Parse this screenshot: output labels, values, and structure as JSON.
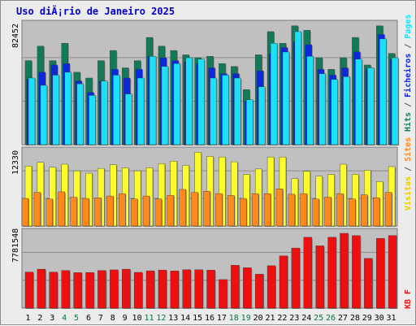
{
  "title": "Uso diÃ¡rio de Janeiro 2025",
  "colors": {
    "hits": "#127a58",
    "files": "#0b28e0",
    "pages": "#1ce0f8",
    "visits": "#fcfc2a",
    "sites": "#ff8a1c",
    "kbytes": "#ee1010",
    "weekend_label": "#007a3e"
  },
  "legend": {
    "top": [
      {
        "text": "Hits",
        "color": "#127a58"
      },
      {
        "text": " / ",
        "color": "#555555"
      },
      {
        "text": "Ficheiros",
        "color": "#0b28e0"
      },
      {
        "text": " / ",
        "color": "#555555"
      },
      {
        "text": "Pages",
        "color": "#1ce0f8"
      }
    ],
    "middle": [
      {
        "text": "Visitas",
        "color": "#e6d000"
      },
      {
        "text": " / ",
        "color": "#555555"
      },
      {
        "text": "Sites",
        "color": "#ff8a1c"
      }
    ],
    "bottom": [
      {
        "text": "KB F",
        "color": "#ee1010"
      }
    ]
  },
  "chart_data": [
    {
      "type": "bar",
      "y_label": "82452",
      "ylim": [
        0,
        82452
      ],
      "categories": [
        "1",
        "2",
        "3",
        "4",
        "5",
        "6",
        "7",
        "8",
        "9",
        "10",
        "11",
        "12",
        "13",
        "14",
        "15",
        "16",
        "17",
        "18",
        "19",
        "20",
        "21",
        "22",
        "23",
        "24",
        "25",
        "26",
        "27",
        "28",
        "29",
        "30",
        "31"
      ],
      "series": [
        {
          "name": "Hits",
          "values": [
            58000,
            68000,
            58000,
            70000,
            50000,
            46000,
            58000,
            65000,
            53000,
            58000,
            74000,
            68000,
            65000,
            62000,
            60000,
            61000,
            56000,
            54000,
            38000,
            62000,
            78000,
            70000,
            82000,
            79000,
            60000,
            52000,
            60000,
            74000,
            55000,
            82000,
            63000
          ]
        },
        {
          "name": "Ficheiros",
          "values": [
            45000,
            50000,
            55000,
            56000,
            44000,
            36000,
            44000,
            52000,
            46000,
            52000,
            61000,
            60000,
            58000,
            57000,
            56000,
            53000,
            49000,
            49000,
            30000,
            51000,
            63000,
            67000,
            71000,
            69000,
            52000,
            48000,
            53000,
            64000,
            52000,
            76000,
            59000
          ]
        },
        {
          "name": "Pages",
          "values": [
            46000,
            41000,
            48000,
            50000,
            42000,
            34000,
            44000,
            48000,
            35000,
            46000,
            61000,
            54000,
            56000,
            60000,
            59000,
            46000,
            48000,
            46000,
            31000,
            40000,
            70000,
            64000,
            78000,
            61000,
            49000,
            45000,
            47000,
            59000,
            53000,
            73000,
            60000
          ]
        }
      ]
    },
    {
      "type": "bar",
      "y_label": "12330",
      "ylim": [
        0,
        12330
      ],
      "categories": [
        "1",
        "2",
        "3",
        "4",
        "5",
        "6",
        "7",
        "8",
        "9",
        "10",
        "11",
        "12",
        "13",
        "14",
        "15",
        "16",
        "17",
        "18",
        "19",
        "20",
        "21",
        "22",
        "23",
        "24",
        "25",
        "26",
        "27",
        "28",
        "29",
        "30",
        "31"
      ],
      "series": [
        {
          "name": "Visitas",
          "values": [
            10000,
            10600,
            9800,
            10300,
            9200,
            8800,
            9600,
            10200,
            9700,
            9200,
            9700,
            10400,
            10800,
            10100,
            12300,
            11600,
            11500,
            10700,
            8600,
            9500,
            11500,
            11500,
            7900,
            9100,
            8300,
            8600,
            10300,
            8600,
            9300,
            7400,
            9900
          ]
        },
        {
          "name": "Sites",
          "values": [
            4600,
            5600,
            4500,
            5700,
            4800,
            4600,
            4700,
            5000,
            5400,
            4500,
            5000,
            4500,
            5100,
            6100,
            5600,
            5800,
            5400,
            5100,
            4600,
            5400,
            5400,
            6200,
            5300,
            5400,
            4500,
            4800,
            5400,
            4500,
            5200,
            4700,
            5600
          ]
        }
      ]
    },
    {
      "type": "bar",
      "y_label": "7781548",
      "ylim": [
        0,
        7781548
      ],
      "categories": [
        "1",
        "2",
        "3",
        "4",
        "5",
        "6",
        "7",
        "8",
        "9",
        "10",
        "11",
        "12",
        "13",
        "14",
        "15",
        "16",
        "17",
        "18",
        "19",
        "20",
        "21",
        "22",
        "23",
        "24",
        "25",
        "26",
        "27",
        "28",
        "29",
        "30",
        "31"
      ],
      "series": [
        {
          "name": "KB F",
          "values": [
            3750000,
            4050000,
            3750000,
            3910000,
            3690000,
            3700000,
            3910000,
            3980000,
            4050000,
            3720000,
            3880000,
            3960000,
            3870000,
            3990000,
            3990000,
            3950000,
            2970000,
            4460000,
            4200000,
            3540000,
            4410000,
            5440000,
            6250000,
            7370000,
            6480000,
            7370000,
            7780000,
            7540000,
            5170000,
            7260000,
            7550000
          ]
        }
      ]
    }
  ],
  "x_axis": {
    "labels": [
      "1",
      "2",
      "3",
      "4",
      "5",
      "6",
      "7",
      "8",
      "9",
      "10",
      "11",
      "12",
      "13",
      "14",
      "15",
      "16",
      "17",
      "18",
      "19",
      "20",
      "21",
      "22",
      "23",
      "24",
      "25",
      "26",
      "27",
      "28",
      "29",
      "30",
      "31"
    ],
    "weekend": [
      false,
      false,
      false,
      true,
      true,
      false,
      false,
      false,
      false,
      false,
      true,
      true,
      false,
      false,
      false,
      false,
      false,
      true,
      true,
      false,
      false,
      false,
      false,
      false,
      true,
      true,
      false,
      false,
      false,
      false,
      false
    ]
  }
}
